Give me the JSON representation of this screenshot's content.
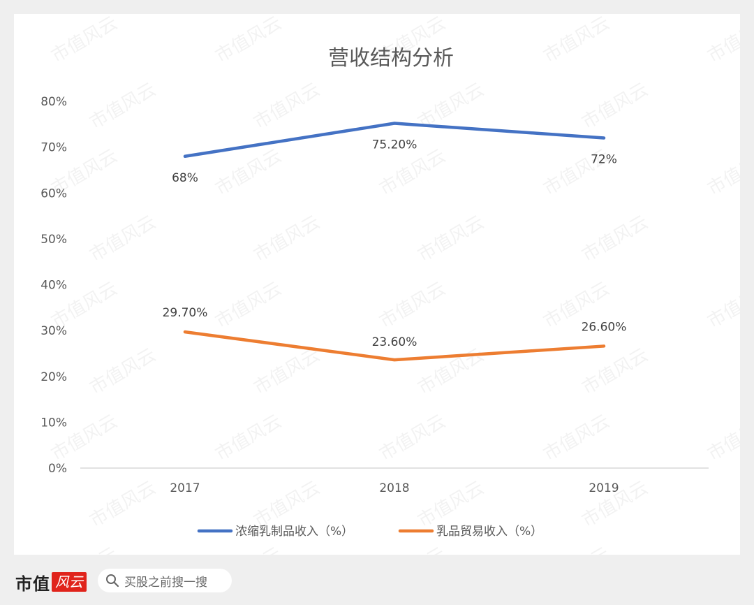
{
  "chart_data": {
    "type": "line",
    "title": "营收结构分析",
    "categories": [
      "2017",
      "2018",
      "2019"
    ],
    "series": [
      {
        "name": "浓缩乳制品收入（%）",
        "values": [
          68,
          75.2,
          72
        ],
        "labels": [
          "68%",
          "75.20%",
          "72%"
        ],
        "color": "#4472c4"
      },
      {
        "name": "乳品贸易收入（%）",
        "values": [
          29.7,
          23.6,
          26.6
        ],
        "labels": [
          "29.70%",
          "23.60%",
          "26.60%"
        ],
        "color": "#ed7d31"
      }
    ],
    "ylim": [
      0,
      80
    ],
    "yticks": [
      0,
      10,
      20,
      30,
      40,
      50,
      60,
      70,
      80
    ],
    "ytick_labels": [
      "0%",
      "10%",
      "20%",
      "30%",
      "40%",
      "50%",
      "60%",
      "70%",
      "80%"
    ],
    "grid": false,
    "legend": "bottom"
  },
  "watermark": "市值风云",
  "footer": {
    "brand": "市值",
    "brand_badge": "风云",
    "search_placeholder": "买股之前搜一搜"
  }
}
